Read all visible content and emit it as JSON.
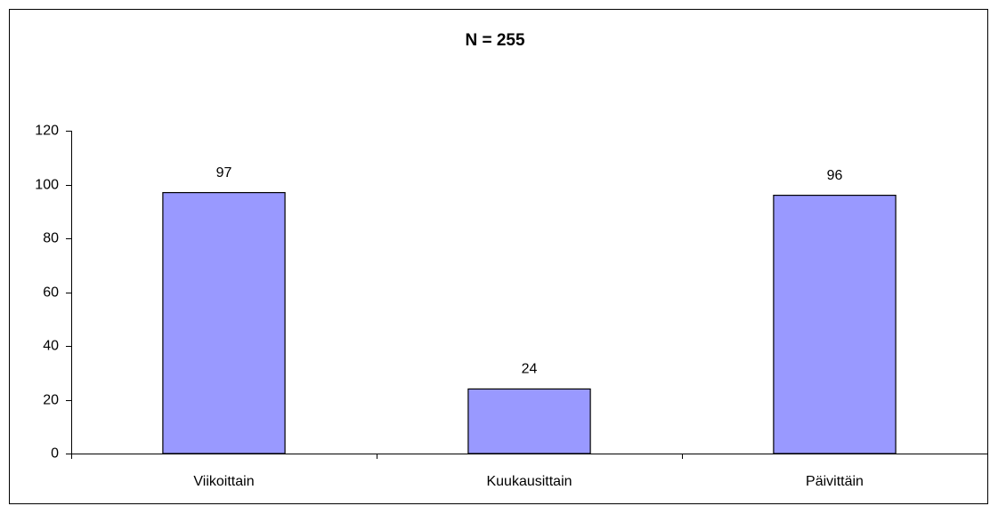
{
  "chart_data": {
    "type": "bar",
    "title": "N = 255",
    "categories": [
      "Viikoittain",
      "Kuukausittain",
      "Päivittäin"
    ],
    "values": [
      97,
      24,
      96
    ],
    "color": "#9999ff",
    "ylim": [
      0,
      120
    ],
    "yticks": [
      0,
      20,
      40,
      60,
      80,
      100,
      120
    ]
  }
}
